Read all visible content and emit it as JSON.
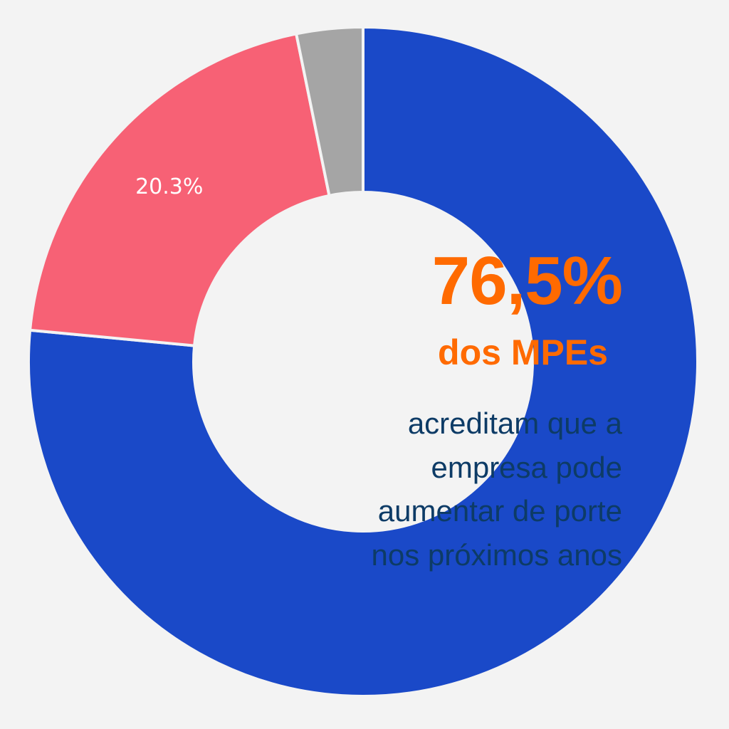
{
  "colors": {
    "background": "#f3f3f3",
    "accent_orange": "#ff6a00",
    "caption_navy": "#0d3b66"
  },
  "chart_data": {
    "type": "pie",
    "style": "donut",
    "slices": [
      {
        "value": 76.5,
        "color": "#1a49c8",
        "label": ""
      },
      {
        "value": 20.3,
        "color": "#f76175",
        "label": "20.3%"
      },
      {
        "value": 3.2,
        "color": "#a5a5a5",
        "label": ""
      }
    ],
    "start_angle": "12 o'clock",
    "direction": "clockwise",
    "legend": "none"
  },
  "callout": {
    "value": "76,5%",
    "subject": "dos MPEs",
    "caption_lines": [
      "acreditam que a",
      "empresa pode",
      "aumentar de porte",
      "nos próximos anos"
    ]
  }
}
